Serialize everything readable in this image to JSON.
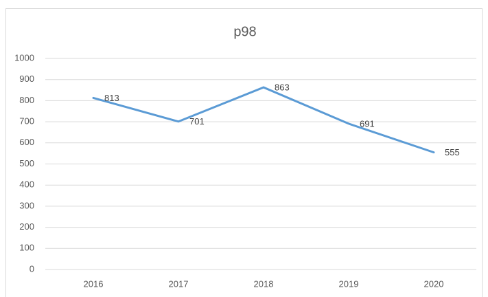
{
  "chart_data": {
    "type": "line",
    "title": "p98",
    "categories": [
      "2016",
      "2017",
      "2018",
      "2019",
      "2020"
    ],
    "series": [
      {
        "name": "p98",
        "color": "#5b9bd5",
        "values": [
          813,
          701,
          863,
          691,
          555
        ]
      }
    ],
    "ylim": [
      0,
      1000
    ],
    "yticks": [
      0,
      100,
      200,
      300,
      400,
      500,
      600,
      700,
      800,
      900,
      1000
    ],
    "grid": true
  }
}
